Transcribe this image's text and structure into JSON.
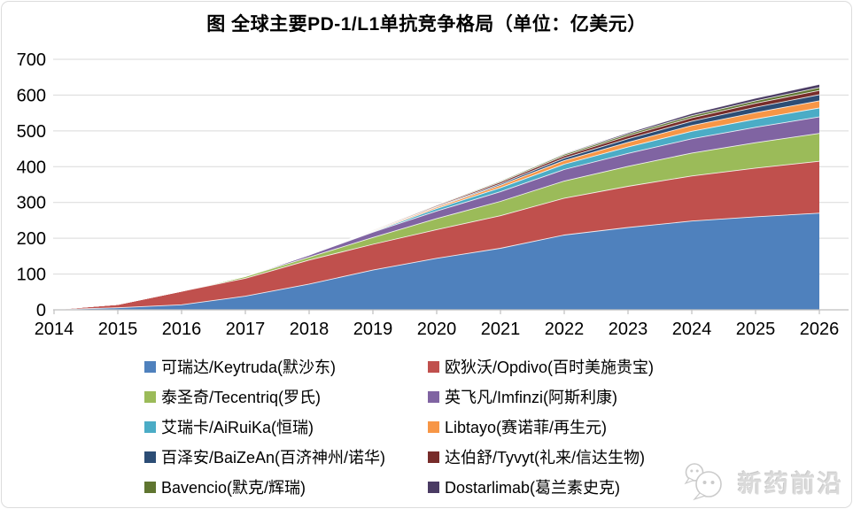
{
  "chart_data": {
    "type": "area",
    "stacked": true,
    "title": "图 全球主要PD-1/L1单抗竞争格局（单位：亿美元）",
    "xlabel": "",
    "ylabel": "",
    "ylim": [
      0,
      700
    ],
    "yticks": [
      0,
      100,
      200,
      300,
      400,
      500,
      600,
      700
    ],
    "grid": true,
    "legend_position": "bottom",
    "categories": [
      "2014",
      "2015",
      "2016",
      "2017",
      "2018",
      "2019",
      "2020",
      "2021",
      "2022",
      "2023",
      "2024",
      "2025",
      "2026"
    ],
    "series": [
      {
        "name": "可瑞达/Keytruda(默沙东)",
        "color": "#4F81BD",
        "values": [
          0.6,
          5.7,
          14,
          38,
          72,
          111,
          144,
          172,
          209,
          230,
          248,
          260,
          270
        ]
      },
      {
        "name": "欧狄沃/Opdivo(百时美施贵宝)",
        "color": "#C0504D",
        "values": [
          0.1,
          9.4,
          38,
          50,
          67,
          72,
          80,
          91,
          103,
          115,
          126,
          136,
          145
        ]
      },
      {
        "name": "泰圣奇/Tecentriq(罗氏)",
        "color": "#9BBB59",
        "values": [
          0,
          0,
          0.2,
          5,
          8,
          19,
          31,
          40,
          48,
          56,
          64,
          71,
          78
        ]
      },
      {
        "name": "英飞凡/Imfinzi(阿斯利康)",
        "color": "#8064A2",
        "values": [
          0,
          0,
          0,
          0.2,
          6,
          15,
          21,
          27,
          32,
          36,
          40,
          43,
          46
        ]
      },
      {
        "name": "艾瑞卡/AiRuiKa(恒瑞)",
        "color": "#4BACC6",
        "values": [
          0,
          0,
          0,
          0,
          0,
          1.5,
          7,
          11,
          15,
          18,
          21,
          23,
          25
        ]
      },
      {
        "name": "Libtayo(赛诺菲/再生元)",
        "color": "#F79646",
        "values": [
          0,
          0,
          0,
          0,
          0.2,
          2,
          4,
          7,
          10,
          13,
          16,
          18,
          20
        ]
      },
      {
        "name": "百泽安/BaiZeAn(百济神州/诺华)",
        "color": "#2C4D75",
        "values": [
          0,
          0,
          0,
          0,
          0,
          0,
          1.6,
          4,
          7,
          10,
          12,
          15,
          17
        ]
      },
      {
        "name": "达伯舒/Tyvyt(礼来/信达生物)",
        "color": "#772C2A",
        "values": [
          0,
          0,
          0,
          0,
          0,
          1.5,
          3,
          5,
          6.5,
          8,
          9.5,
          11,
          12
        ]
      },
      {
        "name": "Bavencio(默克/辉瑞)",
        "color": "#5F7530",
        "values": [
          0,
          0,
          0,
          0.2,
          1,
          1.5,
          2,
          3,
          4,
          5,
          6,
          7,
          8
        ]
      },
      {
        "name": "Dostarlimab(葛兰素史克)",
        "color": "#4A3B63",
        "values": [
          0,
          0,
          0,
          0,
          0,
          0,
          0,
          0.5,
          2,
          4,
          6,
          7.5,
          9
        ]
      }
    ]
  },
  "colors": {
    "grid": "#D9D9D9",
    "axis": "#BFBFBF",
    "frame": "#DCDCDC",
    "text": "#000000",
    "separator": "#FFFFFF",
    "watermark": "#DADADA"
  },
  "watermark": {
    "text": "新药前沿",
    "icon": "wechat-bubbles-icon"
  }
}
